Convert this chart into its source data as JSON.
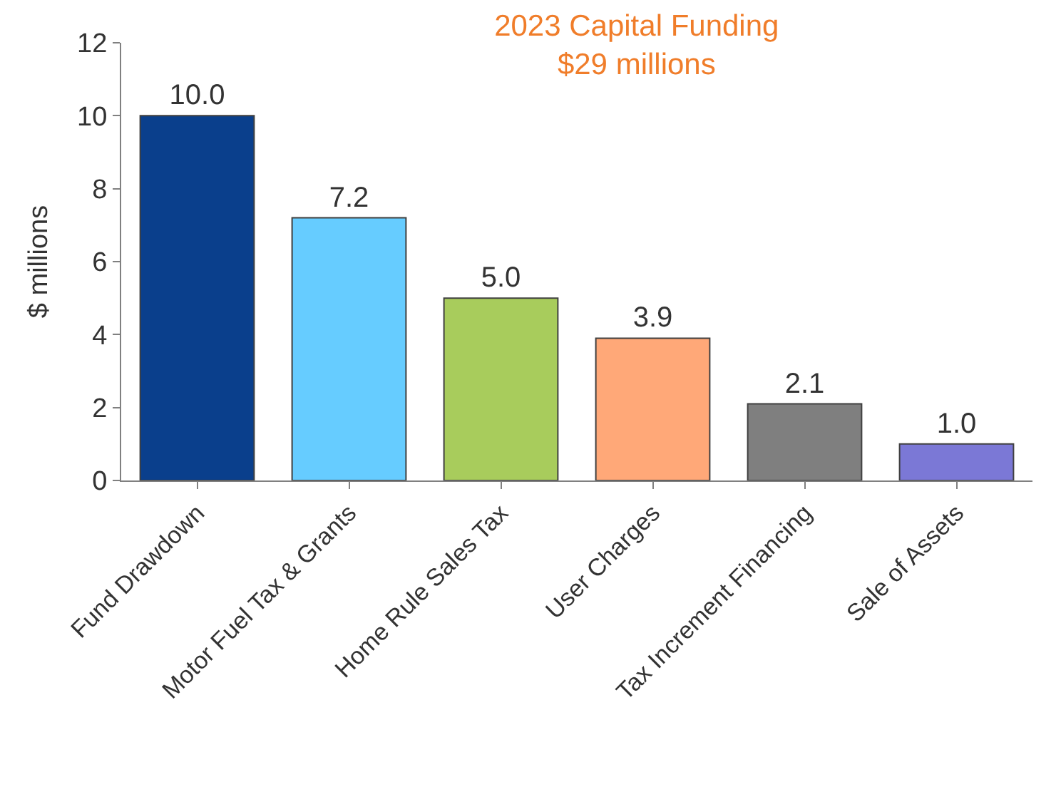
{
  "chart_data": {
    "type": "bar",
    "title": "2023 Capital Funding",
    "subtitle": "$29 millions",
    "ylabel": "$ millions",
    "categories": [
      "Fund Drawdown",
      "Motor Fuel Tax & Grants",
      "Home Rule Sales Tax",
      "User Charges",
      "Tax Increment Financing",
      "Sale of Assets"
    ],
    "values": [
      10.0,
      7.2,
      5.0,
      3.9,
      2.1,
      1.0
    ],
    "colors": [
      "#0a3f8c",
      "#66ccff",
      "#a8cc5c",
      "#ffa878",
      "#7f7f7f",
      "#7b78d6"
    ],
    "value_labels": [
      "10.0",
      "7.2",
      "5.0",
      "3.9",
      "2.1",
      "1.0"
    ],
    "ylim": [
      0,
      12
    ],
    "yticks": [
      0,
      2,
      4,
      6,
      8,
      10,
      12
    ],
    "legend": false
  }
}
